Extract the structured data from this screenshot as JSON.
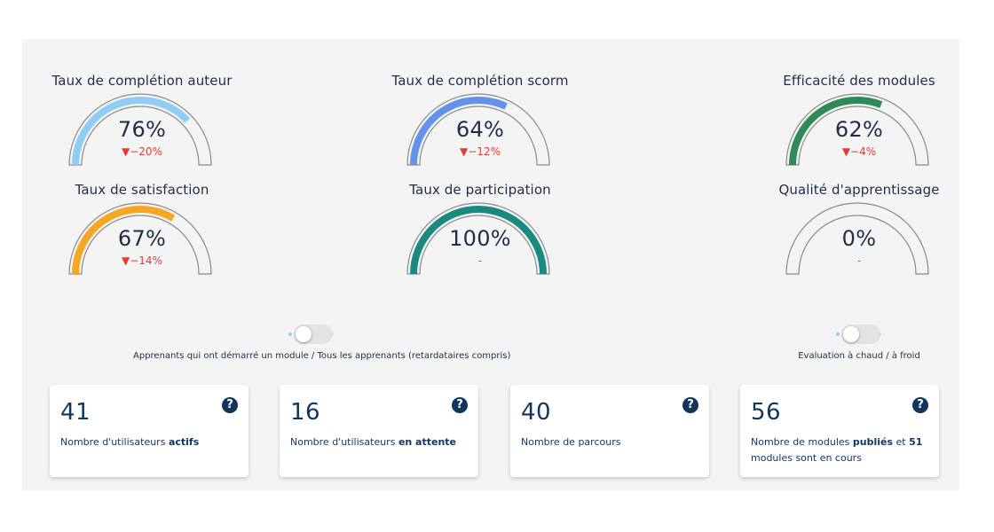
{
  "gauges": [
    {
      "title": "Taux de complétion auteur",
      "value_label": "76%",
      "value": 76,
      "delta": "▼−20%",
      "delta_kind": "down",
      "color": "#8fcdf7"
    },
    {
      "title": "Taux de complétion scorm",
      "value_label": "64%",
      "value": 64,
      "delta": "▼−12%",
      "delta_kind": "down",
      "color": "#6392ea"
    },
    {
      "title": "Efficacité des modules",
      "value_label": "62%",
      "value": 62,
      "delta": "▼−4%",
      "delta_kind": "down",
      "color": "#2e8b57"
    },
    {
      "title": "Taux de satisfaction",
      "value_label": "67%",
      "value": 67,
      "delta": "▼−14%",
      "delta_kind": "down",
      "color": "#f5a623"
    },
    {
      "title": "Taux de participation",
      "value_label": "100%",
      "value": 100,
      "delta": "-",
      "delta_kind": "neutral",
      "color": "#1a8a7f"
    },
    {
      "title": "Qualité d'apprentissage",
      "value_label": "0%",
      "value": 0,
      "delta": "-",
      "delta_kind": "neutral",
      "color": "#2a9d8f"
    }
  ],
  "toggles": {
    "learners": {
      "label": "Apprenants qui ont démarré un module / Tous les apprenants (retardataires compris)"
    },
    "evaluation": {
      "label": "Evaluation à chaud / à froid"
    }
  },
  "cards": [
    {
      "number": "41",
      "text_pre": "Nombre d'utilisateurs ",
      "text_bold": "actifs",
      "text_mid": "",
      "text_bold2": "",
      "text_post": ""
    },
    {
      "number": "16",
      "text_pre": "Nombre d'utilisateurs ",
      "text_bold": "en attente",
      "text_mid": "",
      "text_bold2": "",
      "text_post": ""
    },
    {
      "number": "40",
      "text_pre": "Nombre de parcours",
      "text_bold": "",
      "text_mid": "",
      "text_bold2": "",
      "text_post": ""
    },
    {
      "number": "56",
      "text_pre": "Nombre de modules ",
      "text_bold": "publiés",
      "text_mid": " et ",
      "text_bold2": "51",
      "text_post": " modules sont en cours"
    }
  ],
  "help_glyph": "?",
  "icons": {
    "help": "question-circle-icon"
  }
}
